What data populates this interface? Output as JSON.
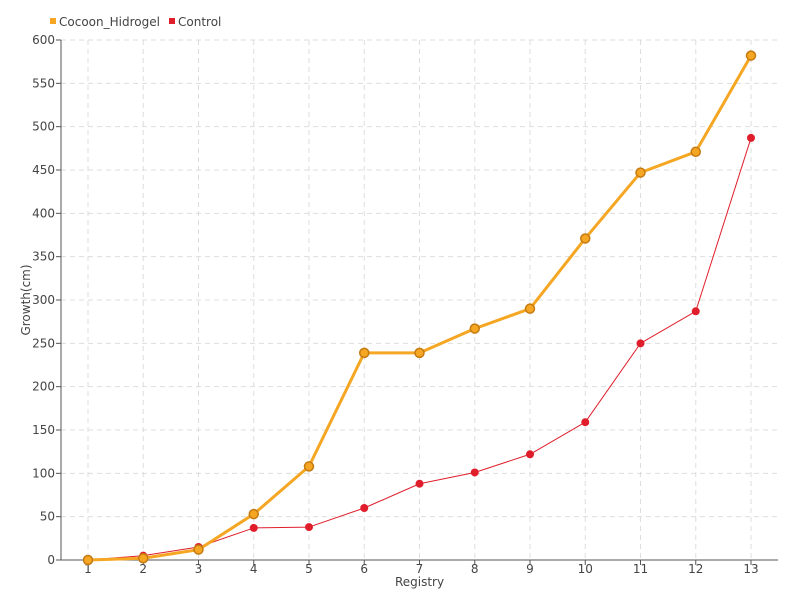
{
  "chart_data": {
    "type": "line",
    "title": "",
    "xlabel": "Registry",
    "ylabel": "Growth(cm)",
    "categories": [
      "1",
      "2",
      "3",
      "4",
      "5",
      "6",
      "7",
      "8",
      "9",
      "10",
      "11",
      "12",
      "13"
    ],
    "ylim": [
      0,
      600
    ],
    "yticks": [
      0,
      50,
      100,
      150,
      200,
      250,
      300,
      350,
      400,
      450,
      500,
      550,
      600
    ],
    "grid": true,
    "legend_position": "top-left",
    "series": [
      {
        "name": "Cocoon_Hidrogel",
        "color": "#f5a623",
        "values": [
          0,
          2,
          12,
          53,
          108,
          239,
          239,
          267,
          290,
          371,
          447,
          471,
          582
        ]
      },
      {
        "name": "Control",
        "color": "#e01e2b",
        "values": [
          0,
          5,
          15,
          37,
          38,
          60,
          88,
          101,
          122,
          159,
          250,
          287,
          487
        ]
      }
    ]
  }
}
